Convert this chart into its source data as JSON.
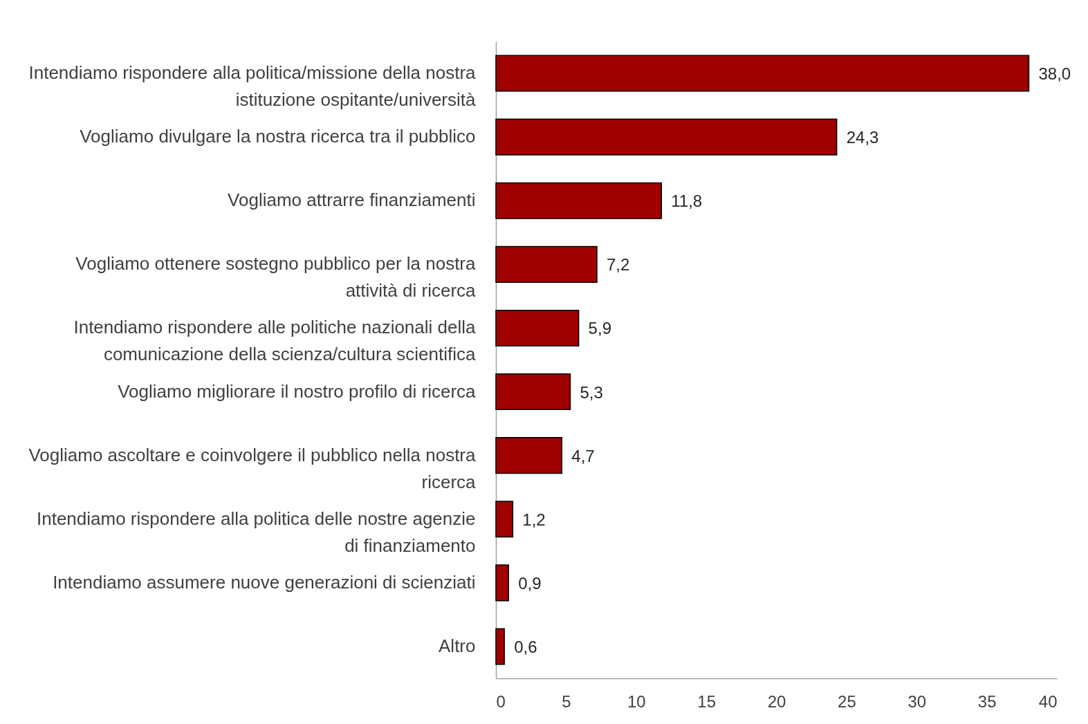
{
  "chart_data": {
    "type": "bar",
    "orientation": "horizontal",
    "categories": [
      "Intendiamo rispondere alla politica/missione della nostra istituzione ospitante/università",
      "Vogliamo divulgare la nostra ricerca tra il pubblico",
      "Vogliamo attrarre finanziamenti",
      "Vogliamo ottenere sostegno pubblico per la nostra attività di ricerca",
      "Intendiamo rispondere alle politiche nazionali della comunicazione della scienza/cultura scientifica",
      "Vogliamo migliorare il nostro profilo di ricerca",
      "Vogliamo ascoltare e coinvolgere il pubblico nella nostra ricerca",
      "Intendiamo rispondere alla politica delle nostre agenzie di finanziamento",
      "Intendiamo assumere nuove generazioni di scienziati",
      "Altro"
    ],
    "values": [
      38.0,
      24.3,
      11.8,
      7.2,
      5.9,
      5.3,
      4.7,
      1.2,
      0.9,
      0.6
    ],
    "value_labels": [
      "38,0",
      "24,3",
      "11,8",
      "7,2",
      "5,9",
      "5,3",
      "4,7",
      "1,2",
      "0,9",
      "0,6"
    ],
    "color": "#a00000",
    "xlim": [
      0,
      40
    ],
    "xticks": [
      0,
      5,
      10,
      15,
      20,
      25,
      30,
      35,
      40
    ],
    "grid": false
  }
}
